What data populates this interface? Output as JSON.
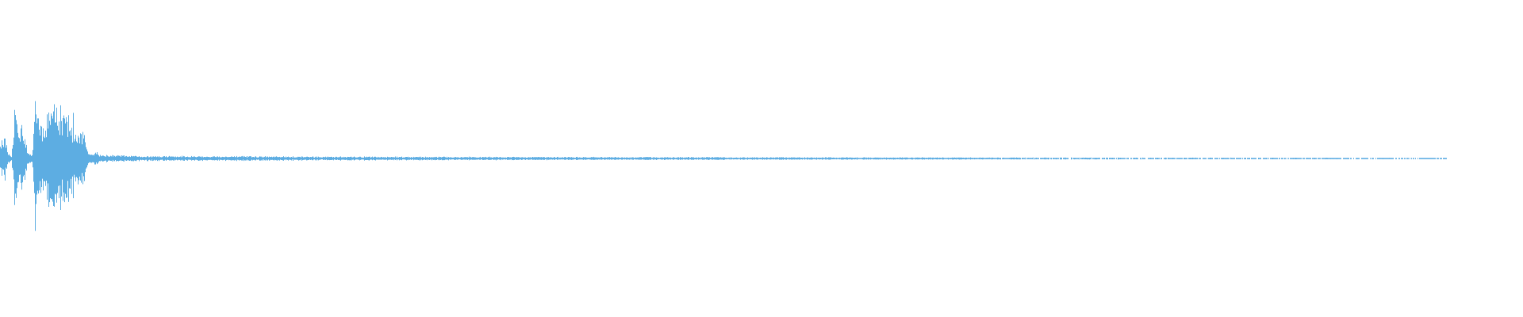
{
  "chart_data": {
    "type": "area",
    "kind": "audio-waveform",
    "color": "#5dade2",
    "background": "#ffffff",
    "amplitude_range": [
      -1,
      1
    ],
    "grid": false,
    "axes": false,
    "envelope": [
      [
        0.0,
        0.13
      ],
      [
        0.003,
        0.12
      ],
      [
        0.005,
        0.03
      ],
      [
        0.008,
        0.02
      ],
      [
        0.01,
        0.4
      ],
      [
        0.012,
        0.24
      ],
      [
        0.016,
        0.2
      ],
      [
        0.019,
        0.03
      ],
      [
        0.022,
        0.03
      ],
      [
        0.024,
        0.33
      ],
      [
        0.027,
        0.22
      ],
      [
        0.03,
        0.2
      ],
      [
        0.034,
        0.38
      ],
      [
        0.038,
        0.36
      ],
      [
        0.042,
        0.3
      ],
      [
        0.047,
        0.24
      ],
      [
        0.053,
        0.2
      ],
      [
        0.058,
        0.14
      ],
      [
        0.06,
        0.05
      ],
      [
        0.064,
        0.05
      ],
      [
        0.068,
        0.03
      ],
      [
        0.075,
        0.02
      ],
      [
        0.1,
        0.016
      ],
      [
        0.2,
        0.013
      ],
      [
        0.3,
        0.011
      ],
      [
        0.45,
        0.009
      ],
      [
        0.6,
        0.007
      ],
      [
        0.72,
        0.006
      ],
      [
        0.85,
        0.005
      ],
      [
        1.0,
        0.004
      ]
    ]
  }
}
